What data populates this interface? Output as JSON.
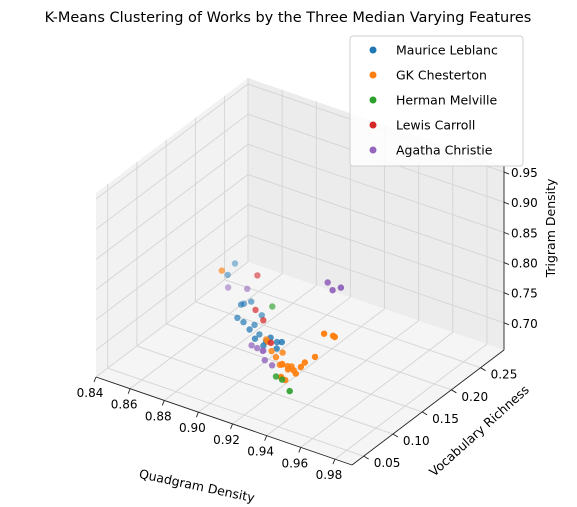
{
  "chart_data": {
    "type": "scatter",
    "projection": "3d",
    "title": "K-Means Clustering of Works by the Three Median Varying Features",
    "xlabel": "Quadgram Density",
    "ylabel": "Vocabulary Richness",
    "zlabel": "Trigram Density",
    "xlim": [
      0.84,
      0.99
    ],
    "ylim": [
      0.03,
      0.29
    ],
    "zlim": [
      0.655,
      0.96
    ],
    "x_ticks": [
      "0.84",
      "0.86",
      "0.88",
      "0.90",
      "0.92",
      "0.94",
      "0.96",
      "0.98"
    ],
    "y_ticks": [
      "0.05",
      "0.10",
      "0.15",
      "0.20",
      "0.25"
    ],
    "z_ticks": [
      "0.70",
      "0.75",
      "0.80",
      "0.85",
      "0.90",
      "0.95"
    ],
    "grid": true,
    "legend_position": "top-right",
    "series": [
      {
        "name": "Maurice Leblanc",
        "color": "#1f77b4",
        "points": [
          [
            0.842,
            0.262,
            0.675
          ],
          [
            0.848,
            0.232,
            0.684
          ],
          [
            0.866,
            0.207,
            0.672
          ],
          [
            0.872,
            0.202,
            0.685
          ],
          [
            0.875,
            0.176,
            0.702
          ],
          [
            0.878,
            0.161,
            0.694
          ],
          [
            0.882,
            0.191,
            0.68
          ],
          [
            0.885,
            0.151,
            0.701
          ],
          [
            0.888,
            0.161,
            0.692
          ],
          [
            0.892,
            0.141,
            0.703
          ],
          [
            0.896,
            0.146,
            0.695
          ],
          [
            0.902,
            0.121,
            0.712
          ],
          [
            0.905,
            0.131,
            0.703
          ],
          [
            0.91,
            0.112,
            0.715
          ],
          [
            0.918,
            0.101,
            0.744
          ],
          [
            0.92,
            0.106,
            0.735
          ],
          [
            0.925,
            0.091,
            0.74
          ],
          [
            0.93,
            0.085,
            0.76
          ]
        ]
      },
      {
        "name": "GK Chesterton",
        "color": "#ff7f0e",
        "points": [
          [
            0.862,
            0.181,
            0.742
          ],
          [
            0.912,
            0.111,
            0.728
          ],
          [
            0.918,
            0.096,
            0.741
          ],
          [
            0.922,
            0.091,
            0.733
          ],
          [
            0.925,
            0.101,
            0.726
          ],
          [
            0.928,
            0.081,
            0.736
          ],
          [
            0.93,
            0.086,
            0.722
          ],
          [
            0.932,
            0.076,
            0.731
          ],
          [
            0.935,
            0.071,
            0.739
          ],
          [
            0.936,
            0.066,
            0.722
          ],
          [
            0.938,
            0.061,
            0.727
          ],
          [
            0.94,
            0.066,
            0.744
          ],
          [
            0.942,
            0.056,
            0.73
          ],
          [
            0.944,
            0.061,
            0.751
          ],
          [
            0.947,
            0.046,
            0.76
          ],
          [
            0.952,
            0.041,
            0.767
          ],
          [
            0.955,
            0.036,
            0.768
          ],
          [
            0.958,
            0.036,
            0.782
          ],
          [
            0.962,
            0.031,
            0.797
          ],
          [
            0.968,
            0.031,
            0.812
          ],
          [
            0.975,
            0.026,
            0.861
          ],
          [
            0.982,
            0.021,
            0.868
          ],
          [
            0.983,
            0.021,
            0.867
          ]
        ]
      },
      {
        "name": "Herman Melville",
        "color": "#2ca02c",
        "points": [
          [
            0.895,
            0.171,
            0.722
          ],
          [
            0.928,
            0.081,
            0.704
          ],
          [
            0.935,
            0.071,
            0.713
          ],
          [
            0.948,
            0.046,
            0.725
          ]
        ]
      },
      {
        "name": "Lewis Carroll",
        "color": "#d62728",
        "points": [
          [
            0.876,
            0.201,
            0.733
          ],
          [
            0.892,
            0.151,
            0.728
          ],
          [
            0.9,
            0.141,
            0.726
          ],
          [
            0.925,
            0.081,
            0.757
          ]
        ]
      },
      {
        "name": "Agatha Christie",
        "color": "#9467bd",
        "points": [
          [
            0.852,
            0.221,
            0.675
          ],
          [
            0.87,
            0.201,
            0.705
          ],
          [
            0.9,
            0.121,
            0.699
          ],
          [
            0.905,
            0.116,
            0.703
          ],
          [
            0.91,
            0.111,
            0.707
          ],
          [
            0.912,
            0.106,
            0.713
          ],
          [
            0.918,
            0.091,
            0.714
          ],
          [
            0.924,
            0.086,
            0.715
          ],
          [
            0.972,
            0.041,
            0.932
          ],
          [
            0.98,
            0.026,
            0.938
          ],
          [
            0.99,
            0.011,
            0.963
          ]
        ]
      }
    ]
  }
}
